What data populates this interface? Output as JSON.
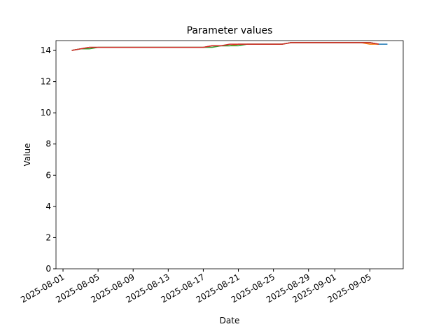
{
  "chart_data": {
    "type": "line",
    "title": "Parameter values",
    "x_label": "Date",
    "y_label": "Value",
    "x": [
      "2025-08-02",
      "2025-08-03",
      "2025-08-04",
      "2025-08-05",
      "2025-08-06",
      "2025-08-07",
      "2025-08-08",
      "2025-08-09",
      "2025-08-10",
      "2025-08-11",
      "2025-08-12",
      "2025-08-13",
      "2025-08-14",
      "2025-08-15",
      "2025-08-16",
      "2025-08-17",
      "2025-08-18",
      "2025-08-19",
      "2025-08-20",
      "2025-08-21",
      "2025-08-22",
      "2025-08-23",
      "2025-08-24",
      "2025-08-25",
      "2025-08-26",
      "2025-08-27",
      "2025-08-28",
      "2025-08-29",
      "2025-08-30",
      "2025-08-31",
      "2025-09-01",
      "2025-09-02",
      "2025-09-03",
      "2025-09-04",
      "2025-09-05",
      "2025-09-06",
      "2025-09-07"
    ],
    "series": [
      {
        "color": "#1f77b4",
        "values": [
          14.0,
          14.1,
          14.2,
          14.2,
          14.2,
          14.2,
          14.2,
          14.2,
          14.2,
          14.2,
          14.2,
          14.2,
          14.2,
          14.2,
          14.2,
          14.2,
          14.3,
          14.3,
          14.3,
          14.4,
          14.4,
          14.4,
          14.4,
          14.4,
          14.4,
          14.5,
          14.5,
          14.5,
          14.5,
          14.5,
          14.5,
          14.5,
          14.5,
          14.5,
          14.5,
          14.4,
          14.4
        ]
      },
      {
        "color": "#ff7f0e",
        "values": [
          14.0,
          14.1,
          14.2,
          14.2,
          14.2,
          14.2,
          14.2,
          14.2,
          14.2,
          14.2,
          14.2,
          14.2,
          14.2,
          14.2,
          14.2,
          14.2,
          14.3,
          14.3,
          14.3,
          14.4,
          14.4,
          14.4,
          14.4,
          14.4,
          14.4,
          14.5,
          14.5,
          14.5,
          14.5,
          14.5,
          14.5,
          14.5,
          14.5,
          14.5,
          14.4,
          14.4,
          null
        ]
      },
      {
        "color": "#2ca02c",
        "values": [
          14.0,
          14.1,
          14.1,
          14.2,
          14.2,
          14.2,
          14.2,
          14.2,
          14.2,
          14.2,
          14.2,
          14.2,
          14.2,
          14.2,
          14.2,
          14.2,
          14.2,
          14.3,
          14.3,
          14.3,
          14.4,
          14.4,
          14.4,
          14.4,
          14.4,
          14.5,
          14.5,
          14.5,
          14.5,
          14.5,
          14.5,
          14.5,
          14.5,
          14.5,
          14.5,
          14.4,
          null
        ]
      },
      {
        "color": "#d62728",
        "values": [
          14.0,
          14.1,
          14.2,
          14.2,
          14.2,
          14.2,
          14.2,
          14.2,
          14.2,
          14.2,
          14.2,
          14.2,
          14.2,
          14.2,
          14.2,
          14.2,
          14.3,
          14.3,
          14.4,
          14.4,
          14.4,
          14.4,
          14.4,
          14.4,
          14.4,
          14.5,
          14.5,
          14.5,
          14.5,
          14.5,
          14.5,
          14.5,
          14.5,
          14.5,
          14.5,
          14.4,
          null
        ]
      }
    ],
    "xlim": [
      "2025-07-31T04:48",
      "2025-09-08T19:12"
    ],
    "xticks": [
      "2025-08-01",
      "2025-08-05",
      "2025-08-09",
      "2025-08-13",
      "2025-08-17",
      "2025-08-21",
      "2025-08-25",
      "2025-08-29",
      "2025-09-01",
      "2025-09-05"
    ],
    "ylim": [
      0,
      14.63
    ],
    "yticks": [
      0,
      2,
      4,
      6,
      8,
      10,
      12,
      14
    ],
    "grid": false
  }
}
